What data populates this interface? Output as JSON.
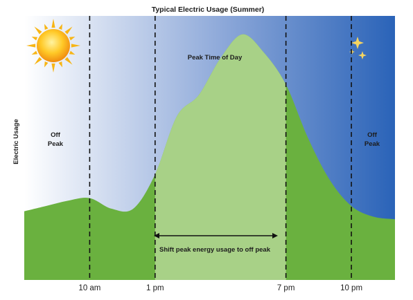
{
  "chart_data": {
    "type": "area",
    "title": "Typical Electric Usage (Summer)",
    "xlabel": "",
    "ylabel": "Electric Usage",
    "y_ticks_shown": false,
    "x_tick_labels": [
      "10 am",
      "1 pm",
      "7 pm",
      "10 pm"
    ],
    "x_ticks": [
      10,
      13,
      19,
      22
    ],
    "xlim": [
      7,
      24
    ],
    "ylim": [
      0,
      100
    ],
    "x": [
      7,
      8,
      9,
      10,
      11,
      12,
      13,
      14,
      15,
      16,
      17,
      18,
      19,
      20,
      21,
      22,
      23,
      24
    ],
    "series": [
      {
        "values": [
          26,
          28,
          30,
          31,
          27,
          27,
          40,
          62,
          70,
          84,
          93,
          86,
          74,
          54,
          38,
          28,
          24,
          23
        ]
      }
    ],
    "highlight": {
      "from": 13,
      "to": 19
    },
    "annotations": {
      "off_peak_left": [
        "Off",
        "Peak"
      ],
      "off_peak_right": [
        "Off",
        "Peak"
      ],
      "peak_time": "Peak Time of Day",
      "shift": "Shift peak energy usage to off peak"
    },
    "colors": {
      "sky_light": "#ffffff",
      "sky_mid": "#8aa6d8",
      "sky_dark": "#2a63b8",
      "usage_off_peak": "#6ab13f",
      "usage_peak": "#a8d187",
      "divider": "#111111",
      "sun": "#f7b515",
      "moon": "#f5c232"
    },
    "icons": [
      "sun-icon",
      "moon-stars-icon"
    ]
  }
}
